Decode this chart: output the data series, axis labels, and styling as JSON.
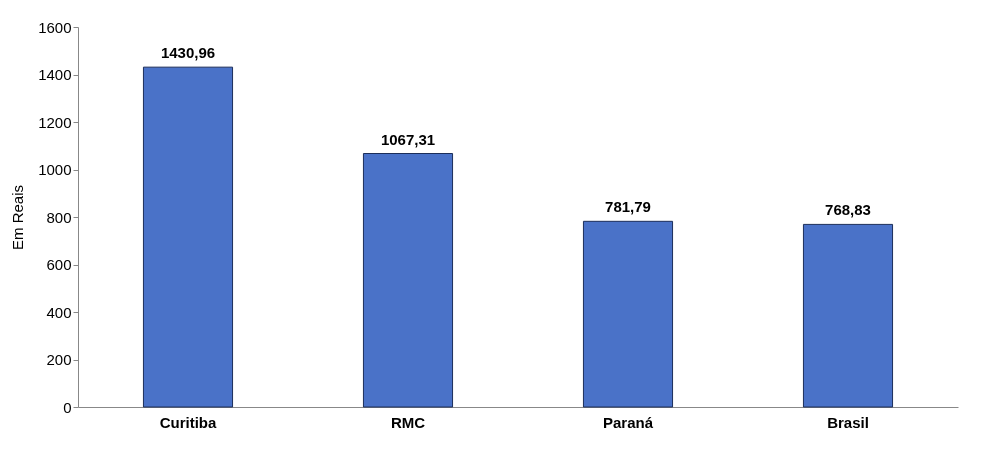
{
  "chart_data": {
    "type": "bar",
    "ylabel": "Em Reais",
    "categories": [
      "Curitiba",
      "RMC",
      "Paraná",
      "Brasil"
    ],
    "values": [
      1430.96,
      1067.31,
      781.79,
      768.83
    ],
    "value_labels": [
      "1430,96",
      "1067,31",
      "781,79",
      "768,83"
    ],
    "color": "#4a72c8",
    "ylim": [
      0,
      1600
    ],
    "yticks": [
      0,
      200,
      400,
      600,
      800,
      1000,
      1200,
      1400,
      1600
    ],
    "grid": false
  }
}
